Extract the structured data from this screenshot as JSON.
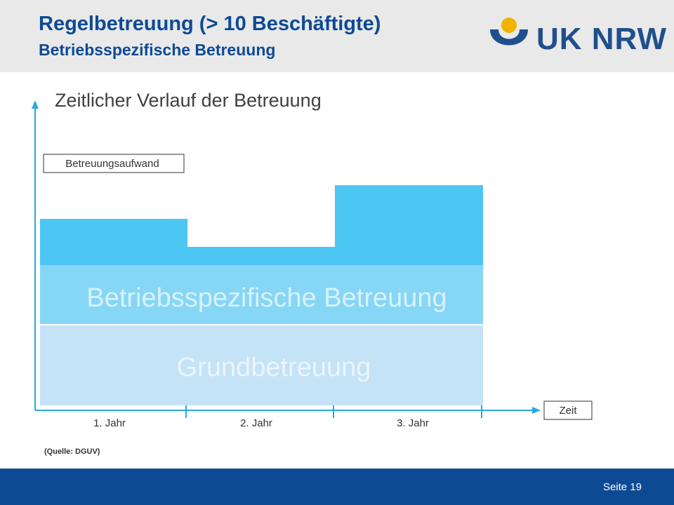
{
  "header": {
    "title": "Regelbetreuung (> 10 Beschäftigte)",
    "subtitle": "Betriebsspezifische Betreuung",
    "logo_text": "UK NRW"
  },
  "slide_heading": "Zeitlicher Verlauf der Betreuung",
  "diagram": {
    "y_axis_label": "Betreuungsaufwand",
    "x_axis_label": "Zeit",
    "layers": {
      "top": "Betriebsspezifische Betreuung",
      "bottom": "Grundbetreuung"
    },
    "years": [
      "1. Jahr",
      "2. Jahr",
      "3. Jahr"
    ],
    "colors": {
      "axis": "#29a8e0",
      "specific_bar": "#4cc6f2",
      "specific_band": "#86d6f6",
      "base_band": "#c5e3f6"
    }
  },
  "source": "(Quelle: DGUV)",
  "footer": {
    "page_label": "Seite 19"
  }
}
